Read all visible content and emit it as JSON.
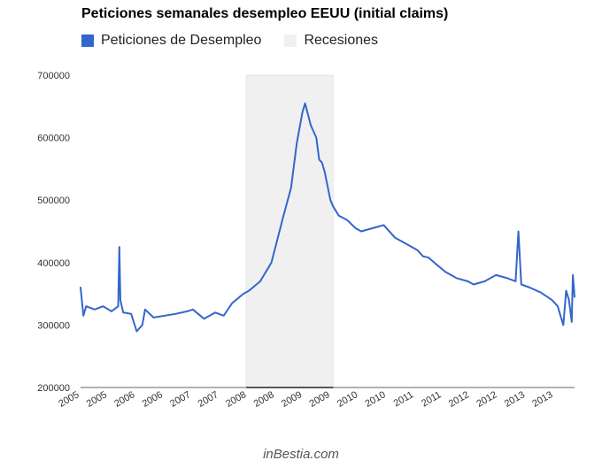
{
  "chart_data": {
    "type": "line",
    "title": "Peticiones semanales desempleo EEUU (initial claims)",
    "legend": [
      {
        "name": "Peticiones de Desempleo",
        "color": "#3366cc",
        "kind": "series"
      },
      {
        "name": "Recesiones",
        "color": "#f0f0f0",
        "kind": "band"
      }
    ],
    "legend_placement": "top-left",
    "xlabel": "",
    "ylabel": "",
    "ylim": [
      200000,
      700000
    ],
    "yticks": [
      200000,
      300000,
      400000,
      500000,
      600000,
      700000
    ],
    "ytick_labels": [
      "200000",
      "300000",
      "400000",
      "500000",
      "600000",
      "700000"
    ],
    "xlim": [
      2005.0,
      2013.8
    ],
    "xtick_labels": [
      "2005",
      "2005",
      "2006",
      "2006",
      "2007",
      "2007",
      "2008",
      "2008",
      "2009",
      "2009",
      "2010",
      "2010",
      "2011",
      "2011",
      "2012",
      "2012",
      "2013",
      "2013"
    ],
    "grid": false,
    "recession": {
      "start": 2007.95,
      "end": 2009.5,
      "label": "Recesiones"
    },
    "series": [
      {
        "name": "Peticiones de Desempleo",
        "color": "#3366cc",
        "x": [
          2005.0,
          2005.05,
          2005.1,
          2005.25,
          2005.4,
          2005.55,
          2005.67,
          2005.69,
          2005.71,
          2005.76,
          2005.9,
          2006.0,
          2006.1,
          2006.15,
          2006.3,
          2006.5,
          2006.7,
          2006.9,
          2007.0,
          2007.2,
          2007.4,
          2007.55,
          2007.7,
          2007.9,
          2008.0,
          2008.2,
          2008.4,
          2008.6,
          2008.75,
          2008.85,
          2008.95,
          2009.0,
          2009.1,
          2009.2,
          2009.25,
          2009.3,
          2009.35,
          2009.45,
          2009.5,
          2009.6,
          2009.75,
          2009.9,
          2010.0,
          2010.2,
          2010.4,
          2010.6,
          2010.8,
          2011.0,
          2011.1,
          2011.2,
          2011.3,
          2011.5,
          2011.7,
          2011.9,
          2012.0,
          2012.2,
          2012.4,
          2012.6,
          2012.75,
          2012.8,
          2012.85,
          2013.0,
          2013.2,
          2013.4,
          2013.5,
          2013.55,
          2013.6,
          2013.65,
          2013.7,
          2013.75,
          2013.77,
          2013.8
        ],
        "values": [
          360000,
          315000,
          330000,
          325000,
          330000,
          322000,
          330000,
          425000,
          340000,
          320000,
          318000,
          290000,
          300000,
          325000,
          312000,
          315000,
          318000,
          322000,
          325000,
          310000,
          320000,
          315000,
          335000,
          350000,
          355000,
          370000,
          400000,
          470000,
          520000,
          590000,
          640000,
          655000,
          620000,
          600000,
          565000,
          560000,
          545000,
          500000,
          490000,
          475000,
          468000,
          455000,
          450000,
          455000,
          460000,
          440000,
          430000,
          420000,
          410000,
          408000,
          400000,
          385000,
          375000,
          370000,
          365000,
          370000,
          380000,
          375000,
          370000,
          450000,
          365000,
          360000,
          352000,
          340000,
          330000,
          315000,
          300000,
          355000,
          340000,
          305000,
          380000,
          345000
        ]
      }
    ]
  },
  "footer": "inBestia.com"
}
